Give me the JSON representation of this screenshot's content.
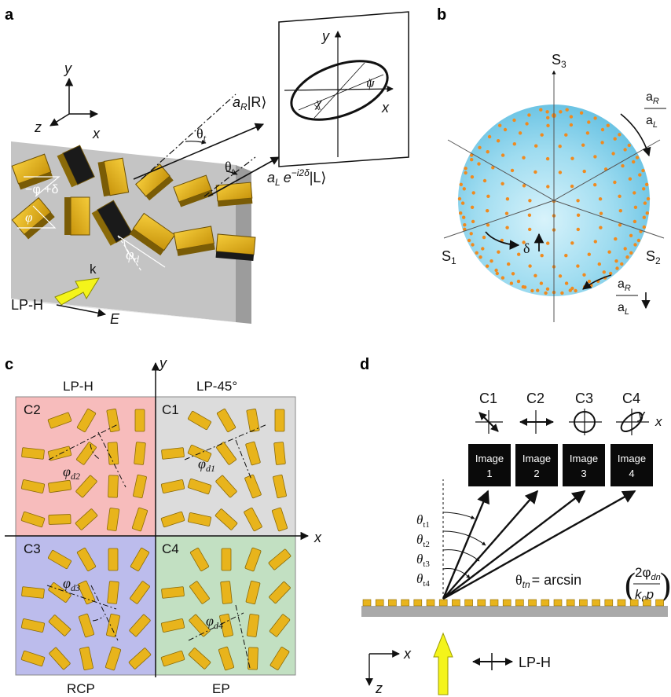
{
  "panels": {
    "a": {
      "letter": "a",
      "axes": {
        "y": "y",
        "z": "z",
        "x": "x"
      },
      "beam_r": "aₐ|R⟩",
      "beam_r_parts": {
        "a": "a",
        "sub": "R",
        "ket": "|R⟩"
      },
      "beam_l_parts": {
        "a": "a",
        "sub": "L",
        "phase": "e",
        "exp": "−i2δ",
        "ket": "|L⟩"
      },
      "theta": "θ",
      "theta_sub": "t",
      "ellipse": {
        "y": "y",
        "x": "x",
        "chi": "χ",
        "psi": "ψ"
      },
      "angles": {
        "minus_phi_delta": "−φ +δ",
        "phi": "φ",
        "phi_d": "φ",
        "phi_d_sub": "d"
      },
      "incident": {
        "label": "LP-H",
        "k": "k",
        "E": "E"
      }
    },
    "b": {
      "letter": "b",
      "s1": "S",
      "s1_sub": "1",
      "s2": "S",
      "s2_sub": "2",
      "s3": "S",
      "s3_sub": "3",
      "delta": "δ",
      "ratio_top": {
        "num": "a",
        "num_sub": "R",
        "den": "a",
        "den_sub": "L"
      },
      "ratio_bottom": {
        "num": "a",
        "num_sub": "R",
        "den": "a",
        "den_sub": "L"
      }
    },
    "c": {
      "letter": "c",
      "axis_y": "y",
      "axis_x": "x",
      "quadrants": [
        {
          "cell": "C2",
          "label": "LP-H",
          "angle": "φ",
          "angle_sub": "d2",
          "color": "#f7bcbc"
        },
        {
          "cell": "C1",
          "label": "LP-45°",
          "angle": "φ",
          "angle_sub": "d1",
          "color": "#dcdcdc"
        },
        {
          "cell": "C3",
          "label": "RCP",
          "angle": "φ",
          "angle_sub": "d3",
          "color": "#bcbcec"
        },
        {
          "cell": "C4",
          "label": "EP",
          "angle": "φ",
          "angle_sub": "d4",
          "color": "#c2e0c2"
        }
      ]
    },
    "d": {
      "letter": "d",
      "channels": [
        {
          "cell": "C1",
          "image_line1": "Image",
          "image_line2": "1"
        },
        {
          "cell": "C2",
          "image_line1": "Image",
          "image_line2": "2"
        },
        {
          "cell": "C3",
          "image_line1": "Image",
          "image_line2": "3"
        },
        {
          "cell": "C4",
          "image_line1": "Image",
          "image_line2": "4"
        }
      ],
      "c4_axes": {
        "y": "y",
        "x": "x"
      },
      "thetas": [
        {
          "sym": "θ",
          "sub": "t1"
        },
        {
          "sym": "θ",
          "sub": "t2"
        },
        {
          "sym": "θ",
          "sub": "t3"
        },
        {
          "sym": "θ",
          "sub": "t4"
        }
      ],
      "formula": {
        "lhs": "θ",
        "lhs_sub": "tn",
        "eq": "= arcsin",
        "num": "2φ",
        "num_sub": "dn",
        "den": "k",
        "den_sub": "0",
        "den_rest": "p"
      },
      "axes": {
        "x": "x",
        "z": "z"
      },
      "incident": "LP-H"
    }
  },
  "colors": {
    "gold": "#e8b41c",
    "gold_dark": "#8a6a08",
    "sphere_dots": "#f08a1e",
    "sphere_fill": "#9fdcf0",
    "arrow_yellow": "#f4f41a"
  }
}
